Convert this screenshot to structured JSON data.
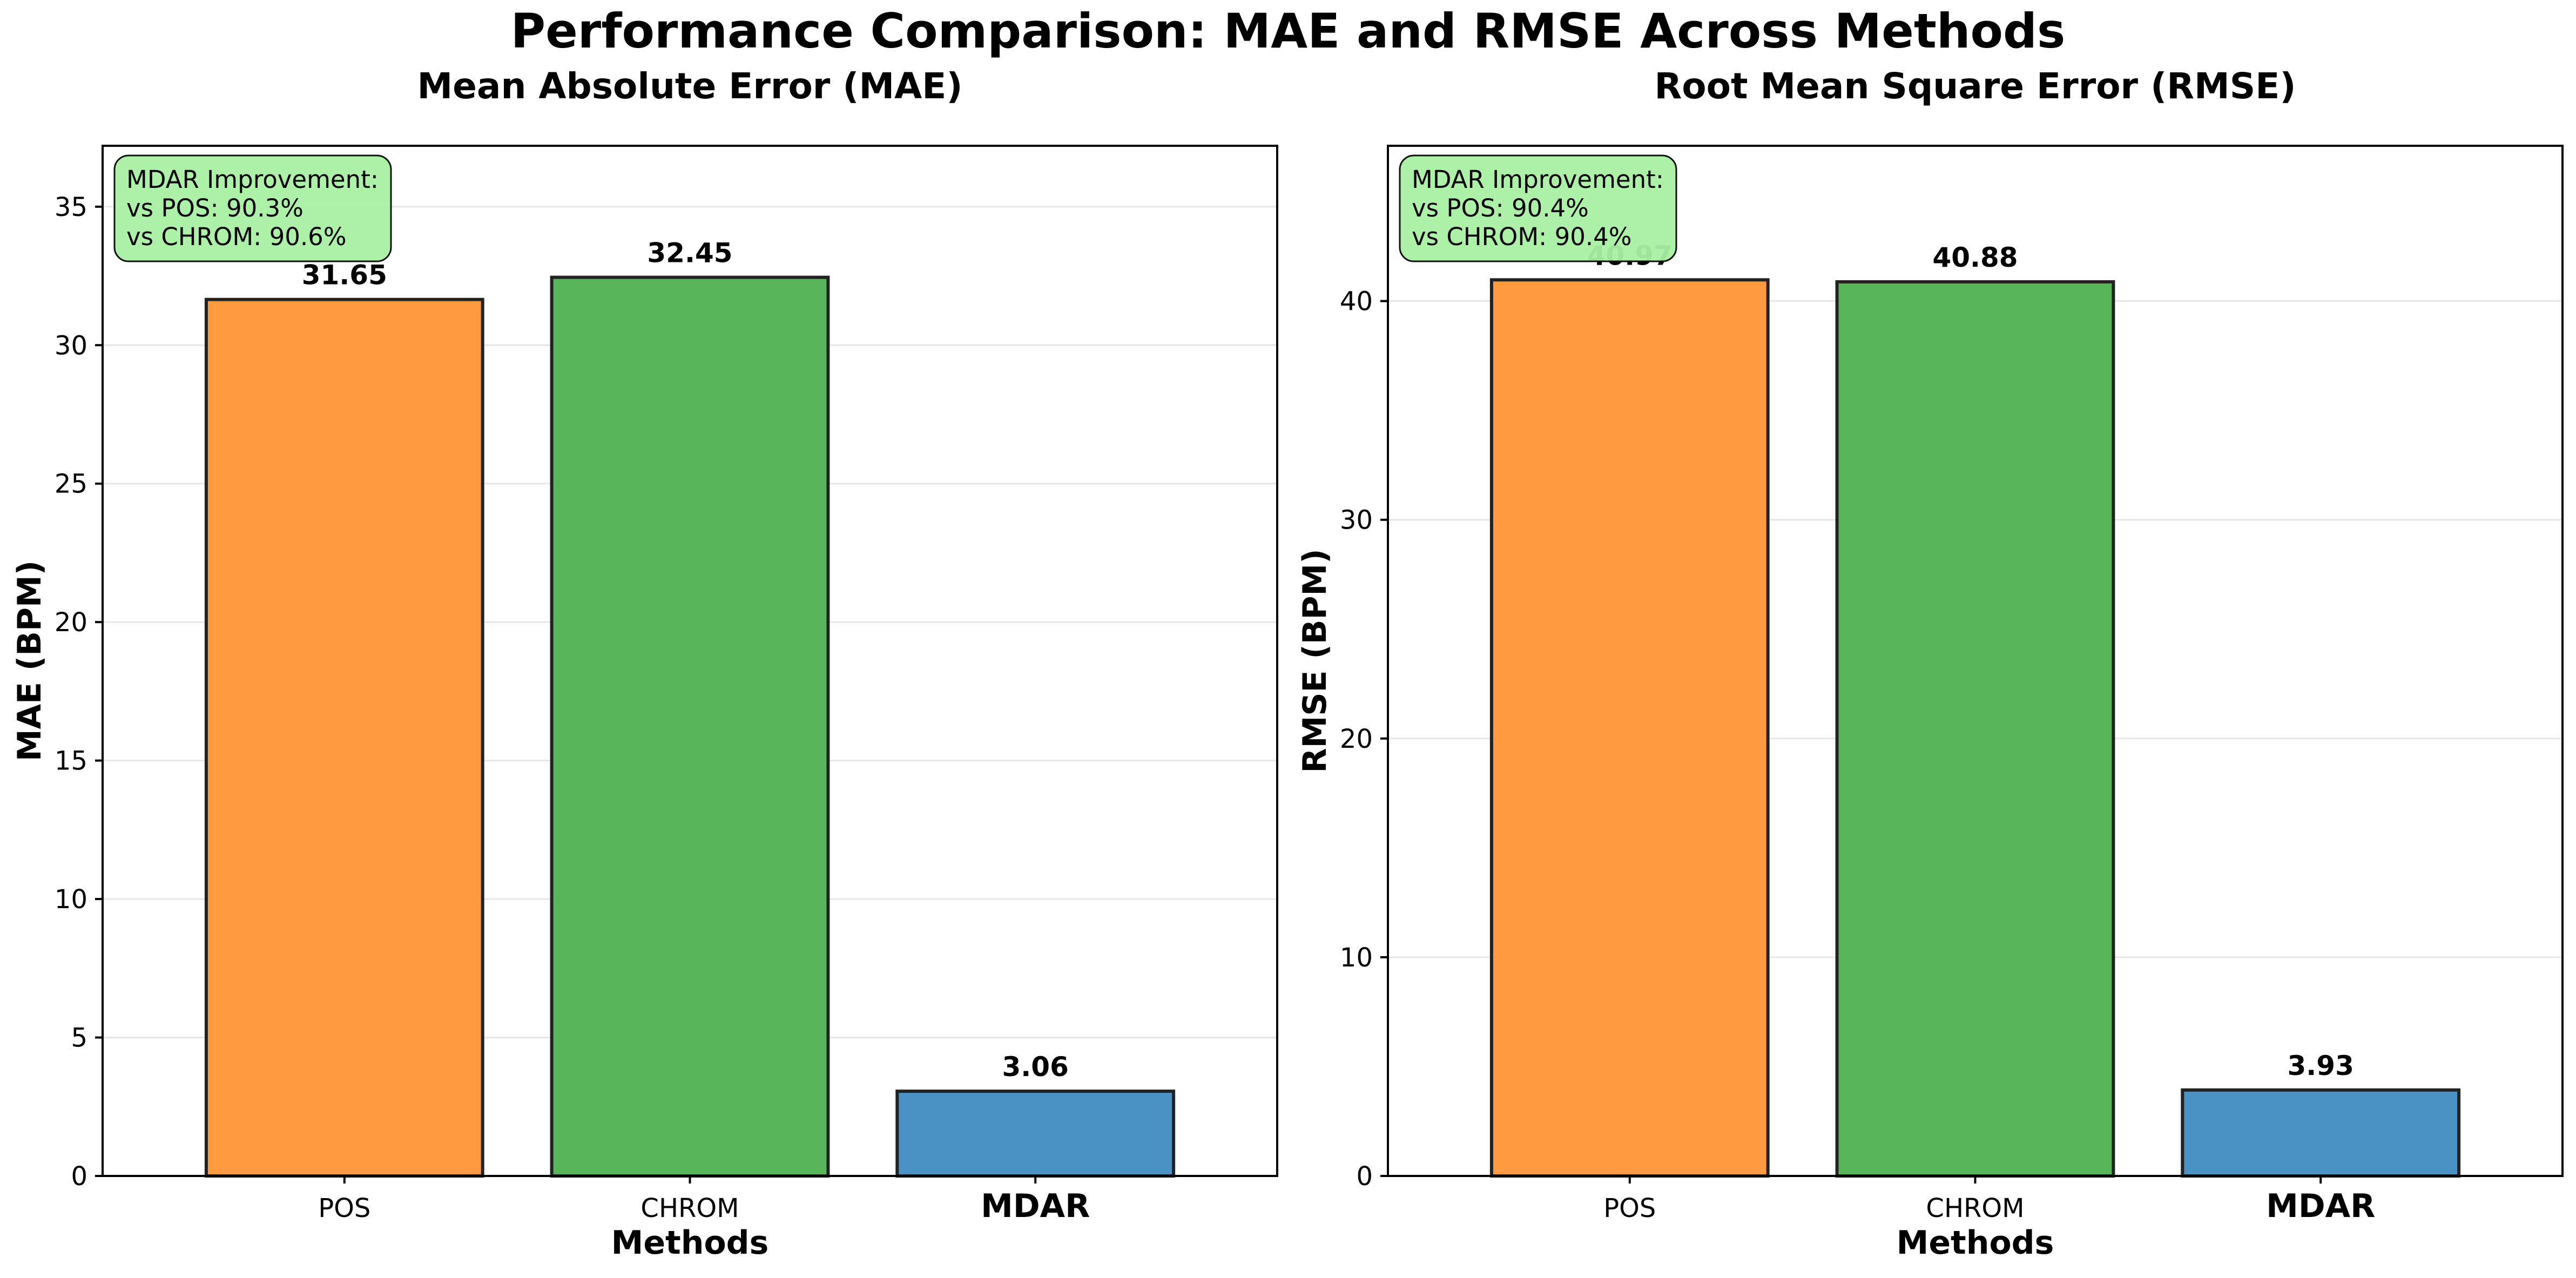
{
  "figure": {
    "title": "Performance Comparison: MAE and RMSE Across Methods"
  },
  "colors": {
    "pos": "#ff9a40",
    "chrom": "#59b55a",
    "mdar": "#4a92c3",
    "improvement_box": "#a8f0a2",
    "grid": "#e6e6e6",
    "axis": "#000000"
  },
  "chart_data": [
    {
      "type": "bar",
      "title": "Mean Absolute Error (MAE)",
      "xlabel": "Methods",
      "ylabel": "MAE (BPM)",
      "categories": [
        "POS",
        "CHROM",
        "MDAR"
      ],
      "values": [
        31.65,
        32.45,
        3.06
      ],
      "value_labels": [
        "31.65",
        "32.45",
        "3.06"
      ],
      "bar_colors": [
        "#ff9a40",
        "#59b55a",
        "#4a92c3"
      ],
      "ylim": [
        0,
        37.2
      ],
      "yticks": [
        0,
        5,
        10,
        15,
        20,
        25,
        30,
        35
      ],
      "grid": true,
      "emphasized_category": "MDAR",
      "annotation": {
        "placement": "top-left",
        "lines": [
          "MDAR Improvement:",
          "vs POS: 90.3%",
          "vs CHROM: 90.6%"
        ]
      }
    },
    {
      "type": "bar",
      "title": "Root Mean Square Error (RMSE)",
      "xlabel": "Methods",
      "ylabel": "RMSE (BPM)",
      "categories": [
        "POS",
        "CHROM",
        "MDAR"
      ],
      "values": [
        40.97,
        40.88,
        3.93
      ],
      "value_labels": [
        "40.97",
        "40.88",
        "3.93"
      ],
      "bar_colors": [
        "#ff9a40",
        "#59b55a",
        "#4a92c3"
      ],
      "ylim": [
        0,
        47.1
      ],
      "yticks": [
        0,
        10,
        20,
        30,
        40
      ],
      "grid": true,
      "emphasized_category": "MDAR",
      "annotation": {
        "placement": "top-left",
        "lines": [
          "MDAR Improvement:",
          "vs POS: 90.4%",
          "vs CHROM: 90.4%"
        ]
      }
    }
  ]
}
